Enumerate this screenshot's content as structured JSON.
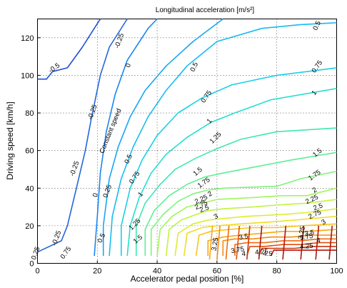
{
  "chart_data": {
    "type": "contour",
    "title": "Longitudinal acceleration [m/s²]",
    "xlabel": "Accelerator pedal position [%]",
    "ylabel": "Driving speed [km/h]",
    "xlim": [
      0,
      100
    ],
    "ylim": [
      0,
      130
    ],
    "xticks": [
      0,
      20,
      40,
      60,
      80,
      100
    ],
    "yticks": [
      0,
      20,
      40,
      60,
      80,
      100,
      120
    ],
    "xtick_labels": [
      "0",
      "20",
      "40",
      "60",
      "80",
      "100"
    ],
    "ytick_labels": [
      "0",
      "20",
      "40",
      "60",
      "80",
      "100",
      "120"
    ],
    "grid": "dotted",
    "annotation": {
      "text": "Constant speed",
      "at": [
        25,
        70
      ],
      "rotation": -68
    },
    "colormap": "jet",
    "series": [
      {
        "level": -0.5,
        "label": "-0.5",
        "color": "#1f4fd8",
        "points": [
          [
            0,
            98
          ],
          [
            3,
            98
          ],
          [
            5,
            102
          ],
          [
            10,
            104
          ],
          [
            15,
            115
          ],
          [
            21,
            130
          ]
        ],
        "label_at": [
          6,
          103
        ],
        "label_rot": -35
      },
      {
        "level": -0.25,
        "label": "-0.25",
        "color": "#2366e0",
        "points": [
          [
            0,
            6
          ],
          [
            8,
            12
          ],
          [
            10,
            20
          ],
          [
            13,
            40
          ],
          [
            16,
            60
          ],
          [
            18,
            77
          ],
          [
            21,
            100
          ],
          [
            24,
            115
          ],
          [
            30,
            130
          ]
        ],
        "label_pos": [
          [
            7,
            13
          ],
          [
            13,
            50
          ],
          [
            19,
            80
          ],
          [
            28,
            118
          ]
        ],
        "label_rot": -70
      },
      {
        "level": 0,
        "label": "0",
        "color": "#1a86f0",
        "points": [
          [
            19,
            4
          ],
          [
            20,
            25
          ],
          [
            21,
            48
          ],
          [
            23,
            70
          ],
          [
            26,
            90
          ],
          [
            30,
            108
          ],
          [
            37,
            125
          ],
          [
            40,
            130
          ]
        ],
        "label_pos": [
          [
            20,
            36
          ],
          [
            31,
            105
          ]
        ],
        "label_rot": -72
      },
      {
        "level": 0.25,
        "label": "0.25",
        "color": "#18a6f2",
        "points": [
          [
            22,
            4
          ],
          [
            22,
            20
          ],
          [
            24,
            45
          ],
          [
            27,
            62
          ],
          [
            31,
            78
          ],
          [
            36,
            92
          ],
          [
            43,
            105
          ],
          [
            52,
            118
          ],
          [
            62,
            130
          ]
        ],
        "label_pos": [
          [
            0,
            5
          ],
          [
            24,
            38
          ]
        ],
        "label_rot": -70
      },
      {
        "level": 0.5,
        "label": "0.5",
        "color": "#17bcf0",
        "points": [
          [
            24,
            4
          ],
          [
            25,
            25
          ],
          [
            28,
            45
          ],
          [
            32,
            62
          ],
          [
            37,
            78
          ],
          [
            43,
            92
          ],
          [
            50,
            105
          ],
          [
            60,
            118
          ],
          [
            75,
            125
          ],
          [
            88,
            127
          ],
          [
            100,
            128
          ]
        ],
        "label_pos": [
          [
            22,
            13
          ],
          [
            31,
            55
          ],
          [
            53,
            104
          ],
          [
            94,
            126
          ]
        ],
        "label_rot": -65
      },
      {
        "level": 0.75,
        "label": "0.75",
        "color": "#1ad0e6",
        "points": [
          [
            28,
            4
          ],
          [
            28,
            20
          ],
          [
            31,
            40
          ],
          [
            35,
            55
          ],
          [
            40,
            68
          ],
          [
            47,
            80
          ],
          [
            55,
            88
          ],
          [
            65,
            95
          ],
          [
            80,
            100
          ],
          [
            100,
            104
          ]
        ],
        "label_pos": [
          [
            10,
            5
          ],
          [
            33,
            45
          ],
          [
            57,
            88
          ],
          [
            94,
            104
          ]
        ],
        "label_rot": -55
      },
      {
        "level": 1,
        "label": "1",
        "color": "#22e0d0",
        "points": [
          [
            30,
            4
          ],
          [
            31,
            20
          ],
          [
            34,
            35
          ],
          [
            38,
            48
          ],
          [
            43,
            58
          ],
          [
            50,
            67
          ],
          [
            58,
            75
          ],
          [
            66,
            80
          ],
          [
            78,
            87
          ],
          [
            100,
            93
          ]
        ],
        "label_pos": [
          [
            35,
            36
          ],
          [
            58,
            75
          ],
          [
            93,
            90
          ]
        ],
        "label_rot": -50
      },
      {
        "level": 1.25,
        "label": "1.25",
        "color": "#3fe8b0",
        "points": [
          [
            33,
            4
          ],
          [
            33,
            20
          ],
          [
            36,
            32
          ],
          [
            41,
            42
          ],
          [
            46,
            50
          ],
          [
            53,
            56
          ],
          [
            60,
            61
          ],
          [
            68,
            66
          ],
          [
            80,
            70
          ],
          [
            100,
            72
          ]
        ],
        "label_pos": [
          [
            33,
            20
          ],
          [
            60,
            66
          ]
        ],
        "label_rot": -45
      },
      {
        "level": 1.5,
        "label": "1.5",
        "color": "#5cf094",
        "points": [
          [
            36,
            4
          ],
          [
            36,
            18
          ],
          [
            39,
            28
          ],
          [
            44,
            36
          ],
          [
            50,
            42
          ],
          [
            56,
            46
          ],
          [
            62,
            48
          ],
          [
            75,
            52
          ],
          [
            85,
            55
          ],
          [
            100,
            59
          ]
        ],
        "label_pos": [
          [
            34,
            12
          ],
          [
            54,
            48
          ],
          [
            94,
            58
          ]
        ],
        "label_rot": -40
      },
      {
        "level": 1.75,
        "label": "1.75",
        "color": "#7ef478",
        "points": [
          [
            38,
            4
          ],
          [
            38,
            18
          ],
          [
            42,
            26
          ],
          [
            47,
            33
          ],
          [
            52,
            37
          ],
          [
            57,
            39
          ],
          [
            62,
            40
          ],
          [
            80,
            41
          ],
          [
            88,
            45
          ],
          [
            100,
            49
          ]
        ],
        "label_pos": [
          [
            56,
            42
          ],
          [
            93,
            46
          ]
        ],
        "label_rot": -35
      },
      {
        "level": 2,
        "label": "2",
        "color": "#a0f65a",
        "points": [
          [
            40,
            4
          ],
          [
            41,
            18
          ],
          [
            45,
            25
          ],
          [
            50,
            30
          ],
          [
            55,
            32
          ],
          [
            60,
            34
          ],
          [
            72,
            35
          ],
          [
            82,
            36
          ],
          [
            90,
            36
          ],
          [
            100,
            40
          ]
        ],
        "label_pos": [
          [
            58,
            36
          ],
          [
            93,
            38
          ]
        ],
        "label_rot": -30
      },
      {
        "level": 2.25,
        "label": "2.25",
        "color": "#c0f442",
        "points": [
          [
            43,
            4
          ],
          [
            44,
            18
          ],
          [
            48,
            23
          ],
          [
            53,
            26
          ],
          [
            57,
            28
          ],
          [
            62,
            29
          ],
          [
            72,
            30
          ],
          [
            80,
            31
          ],
          [
            90,
            32
          ],
          [
            100,
            34
          ]
        ],
        "label_pos": [
          [
            55,
            33
          ],
          [
            92,
            33
          ]
        ],
        "label_rot": -25
      },
      {
        "level": 2.5,
        "label": "2.5",
        "color": "#dcee2c",
        "points": [
          [
            46,
            4
          ],
          [
            47,
            16
          ],
          [
            52,
            21
          ],
          [
            57,
            23
          ],
          [
            63,
            24
          ],
          [
            70,
            25
          ],
          [
            82,
            26
          ],
          [
            90,
            27
          ],
          [
            100,
            29
          ]
        ],
        "label_pos": [
          [
            56,
            28
          ],
          [
            94,
            29
          ]
        ],
        "label_rot": -20
      },
      {
        "level": 2.75,
        "label": "2.75",
        "color": "#f2de1e",
        "points": [
          [
            49,
            4
          ],
          [
            50,
            16
          ],
          [
            55,
            19
          ],
          [
            60,
            20
          ],
          [
            68,
            21
          ],
          [
            78,
            22
          ],
          [
            86,
            23
          ],
          [
            100,
            25
          ]
        ],
        "label_pos": [
          [
            55,
            30
          ],
          [
            93,
            25
          ]
        ],
        "label_rot": -25
      },
      {
        "level": 3,
        "label": "3",
        "color": "#fac418",
        "points": [
          [
            53,
            4
          ],
          [
            54,
            15
          ],
          [
            58,
            17
          ],
          [
            64,
            18
          ],
          [
            72,
            19
          ],
          [
            80,
            19
          ],
          [
            88,
            20
          ],
          [
            100,
            21
          ]
        ],
        "label_pos": [
          [
            60,
            24
          ],
          [
            96,
            21
          ]
        ],
        "label_rot": -30
      },
      {
        "level": 3.25,
        "label": "3.25",
        "color": "#f9a614",
        "points": [
          [
            57,
            4
          ],
          [
            57,
            12
          ],
          [
            62,
            14
          ],
          [
            68,
            15
          ],
          [
            75,
            16
          ],
          [
            82,
            17
          ],
          [
            90,
            17
          ],
          [
            100,
            18
          ]
        ],
        "label_pos": [
          [
            60,
            10
          ],
          [
            89,
            16
          ]
        ],
        "label_rot": -80
      },
      {
        "level": 3.5,
        "label": "3.5",
        "color": "#f58a12",
        "points": [
          [
            62,
            4
          ],
          [
            62,
            12
          ],
          [
            66,
            13
          ],
          [
            72,
            13
          ],
          [
            78,
            14
          ],
          [
            85,
            14
          ],
          [
            92,
            15
          ],
          [
            100,
            15
          ]
        ],
        "label_pos": [
          [
            69,
            13
          ],
          [
            91,
            15
          ]
        ],
        "label_rot": -10
      },
      {
        "level": 3.75,
        "label": "3.75",
        "color": "#ee6c10",
        "points": [
          [
            66,
            4
          ],
          [
            66,
            10
          ],
          [
            70,
            11
          ],
          [
            76,
            11
          ],
          [
            82,
            12
          ],
          [
            88,
            12
          ],
          [
            94,
            13
          ],
          [
            100,
            13
          ]
        ],
        "label_pos": [
          [
            67,
            6
          ],
          [
            90,
            13
          ]
        ],
        "label_rot": -10
      },
      {
        "level": 4,
        "label": "4",
        "color": "#e0500e",
        "points": [
          [
            70,
            4
          ],
          [
            71,
            9
          ],
          [
            76,
            9
          ],
          [
            82,
            10
          ],
          [
            88,
            10
          ],
          [
            94,
            11
          ],
          [
            100,
            11
          ]
        ],
        "label_pos": [
          [
            69,
            4
          ],
          [
            94,
            11
          ]
        ],
        "label_rot": -5
      },
      {
        "level": 4.25,
        "label": "4.25",
        "color": "#cc340c",
        "points": [
          [
            74,
            4
          ],
          [
            75,
            8
          ],
          [
            80,
            8
          ],
          [
            86,
            8
          ],
          [
            92,
            9
          ],
          [
            100,
            9
          ]
        ],
        "label_pos": [
          [
            75,
            5
          ],
          [
            90,
            8
          ]
        ],
        "label_rot": -5
      },
      {
        "level": 4.5,
        "label": "4.5",
        "color": "#b0140a",
        "points": [
          [
            78,
            4
          ],
          [
            79,
            7
          ],
          [
            84,
            7
          ],
          [
            90,
            7
          ],
          [
            100,
            7
          ]
        ],
        "label_pos": [
          [
            77,
            4
          ]
        ],
        "label_rot": 0
      }
    ],
    "extra_verticals": [
      {
        "x": 57.5,
        "level": 3.25,
        "color": "#f9a614"
      },
      {
        "x": 60.0,
        "level": 3.5,
        "color": "#f58a12"
      },
      {
        "x": 63.0,
        "level": 3.75,
        "color": "#ee6c10"
      },
      {
        "x": 66.5,
        "level": 4,
        "color": "#e0500e"
      },
      {
        "x": 70.0,
        "level": 4.25,
        "color": "#cc340c"
      },
      {
        "x": 74.0,
        "level": 4.5,
        "color": "#b0140a"
      },
      {
        "x": 82.0,
        "level": 4.5,
        "color": "#b0140a"
      },
      {
        "x": 88.0,
        "level": 4.5,
        "color": "#b0140a"
      },
      {
        "x": 93.0,
        "level": 4.5,
        "color": "#b0140a"
      },
      {
        "x": 97.5,
        "level": 4.5,
        "color": "#b0140a"
      }
    ]
  }
}
